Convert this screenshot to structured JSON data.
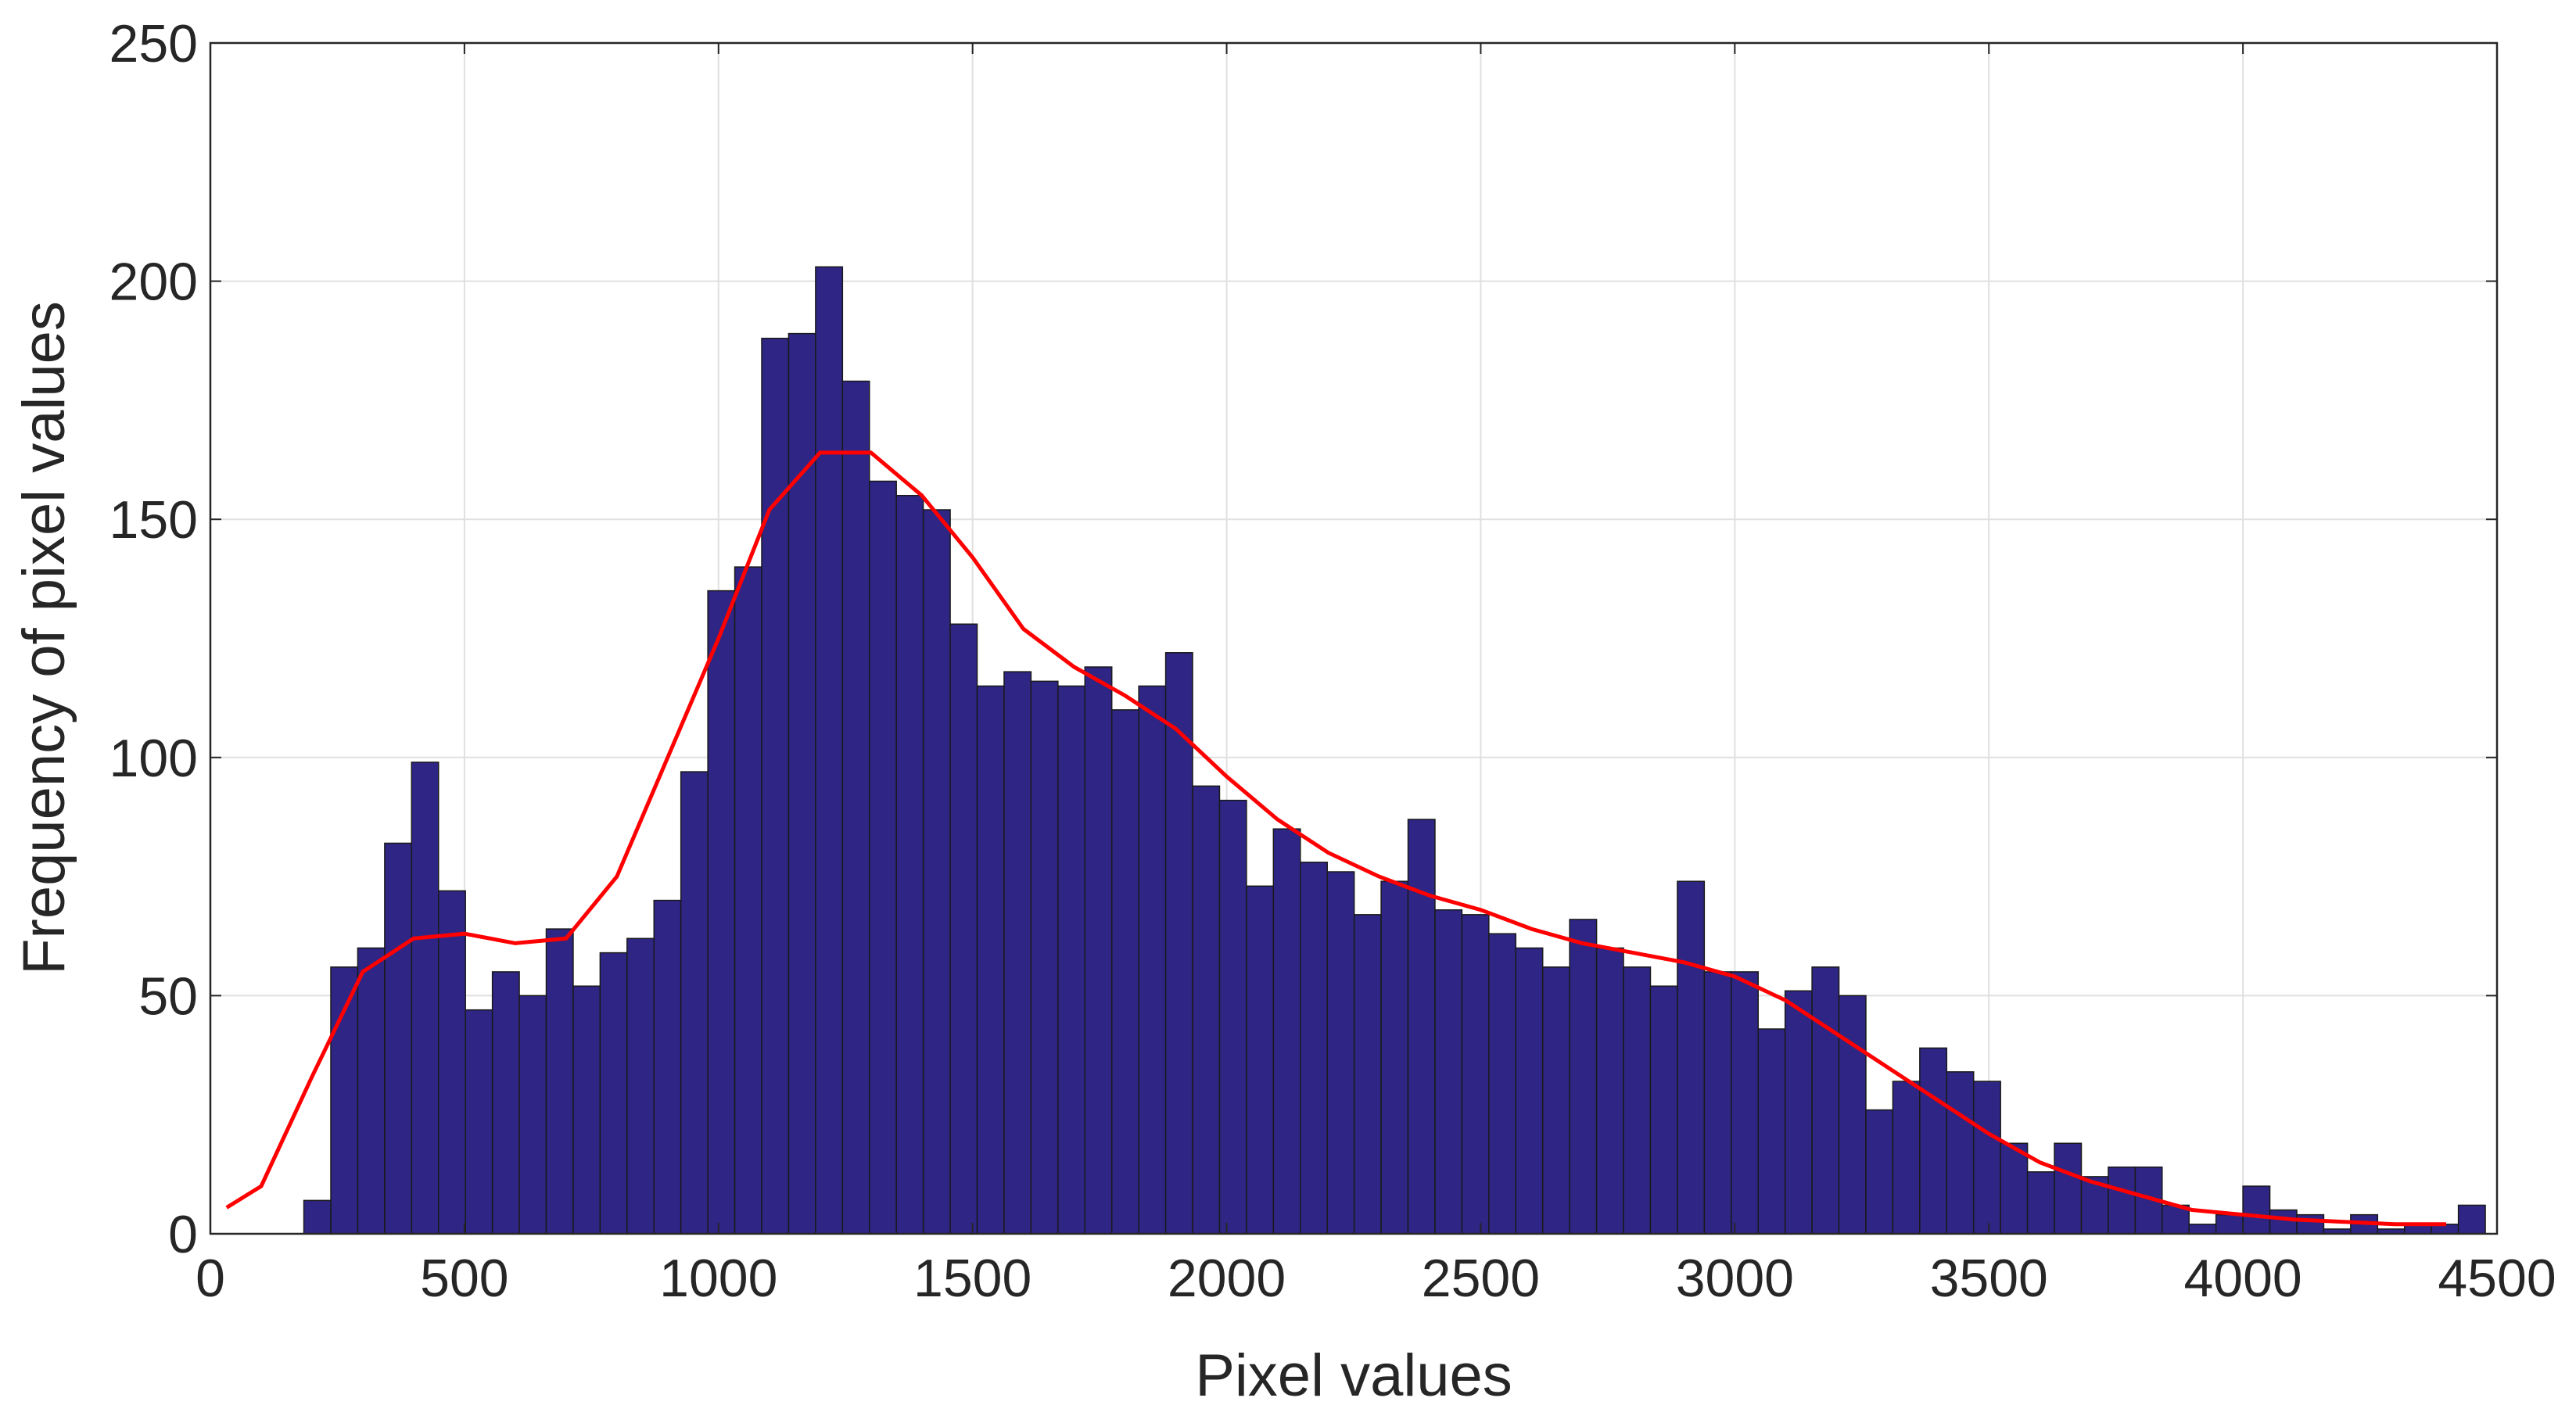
{
  "chart_data": {
    "type": "histogram",
    "xlabel": "Pixel values",
    "ylabel": "Frequency of pixel values",
    "bins": [
      184,
      237,
      290,
      343,
      396,
      449,
      502,
      555,
      608,
      661,
      714,
      767,
      820,
      873,
      926,
      979,
      1032,
      1085,
      1138,
      1191,
      1244,
      1297,
      1350,
      1403,
      1456,
      1509,
      1562,
      1615,
      1668,
      1721,
      1774,
      1827,
      1880,
      1933,
      1986,
      2039,
      2092,
      2145,
      2198,
      2251,
      2304,
      2357,
      2410,
      2463,
      2516,
      2569,
      2622,
      2675,
      2728,
      2781,
      2834,
      2887,
      2940,
      2993,
      3046,
      3099,
      3152,
      3205,
      3258,
      3311,
      3364,
      3417,
      3470,
      3523,
      3576,
      3629,
      3682,
      3735,
      3788,
      3841,
      3894,
      3947,
      4000,
      4053,
      4106,
      4159,
      4212,
      4265,
      4318,
      4371,
      4424,
      4477
    ],
    "counts": [
      7,
      56,
      60,
      82,
      99,
      72,
      47,
      55,
      50,
      64,
      52,
      59,
      62,
      70,
      97,
      135,
      140,
      188,
      189,
      203,
      179,
      158,
      155,
      152,
      128,
      115,
      118,
      116,
      115,
      119,
      110,
      115,
      122,
      94,
      91,
      73,
      85,
      78,
      76,
      67,
      74,
      87,
      68,
      67,
      63,
      60,
      56,
      66,
      60,
      56,
      52,
      74,
      55,
      55,
      43,
      51,
      56,
      50,
      26,
      32,
      39,
      34,
      32,
      19,
      13,
      19,
      12,
      14,
      14,
      6,
      2,
      4,
      10,
      5,
      4,
      1,
      4,
      1,
      2,
      2,
      6
    ],
    "color": "#2e2585",
    "curve": {
      "x": [
        32,
        100,
        200,
        300,
        400,
        500,
        600,
        700,
        800,
        900,
        1000,
        1100,
        1200,
        1300,
        1400,
        1500,
        1600,
        1700,
        1800,
        1900,
        2000,
        2100,
        2200,
        2300,
        2400,
        2500,
        2600,
        2700,
        2800,
        2900,
        3000,
        3100,
        3200,
        3300,
        3400,
        3500,
        3600,
        3700,
        3800,
        3900,
        4000,
        4100,
        4200,
        4300,
        4400
      ],
      "values": [
        5.5,
        10,
        33,
        55,
        62,
        63,
        61,
        62,
        75,
        100,
        125,
        152,
        164,
        164,
        155,
        142,
        127,
        119,
        113,
        106,
        96,
        87,
        80,
        75,
        71,
        68,
        64,
        61,
        59,
        57,
        54,
        49,
        42,
        35,
        28,
        21,
        15,
        11,
        8,
        5,
        4,
        3,
        2.5,
        2,
        2
      ],
      "color": "#ff0000"
    },
    "xlim": [
      0,
      4500
    ],
    "xticks": [
      0,
      500,
      1000,
      1500,
      2000,
      2500,
      3000,
      3500,
      4000,
      4500
    ],
    "ylim": [
      0,
      250
    ],
    "yticks": [
      0,
      50,
      100,
      150,
      200,
      250
    ],
    "grid": true
  }
}
